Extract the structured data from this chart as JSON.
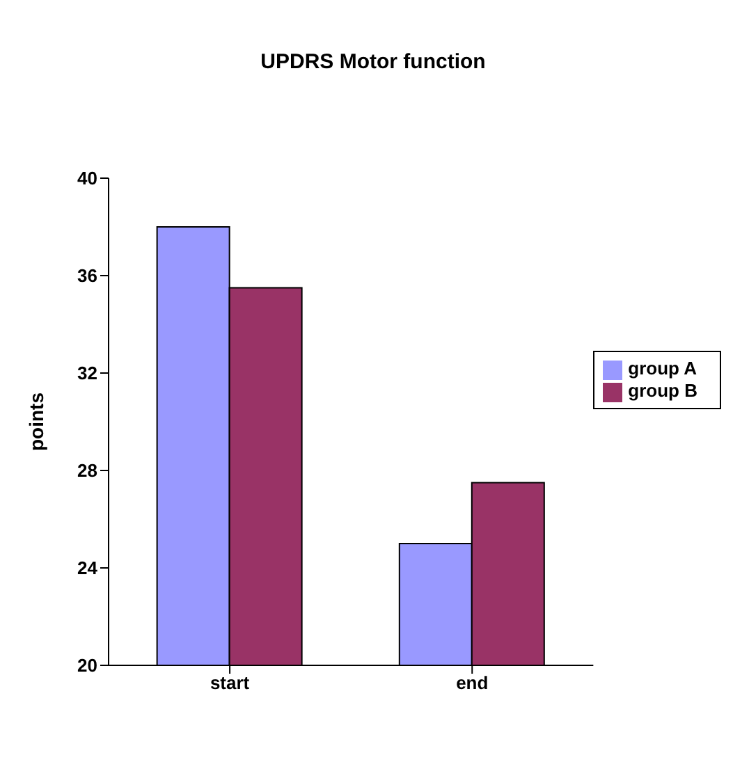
{
  "chart_data": {
    "type": "bar",
    "title": "UPDRS Motor function",
    "ylabel": "points",
    "categories": [
      "start",
      "end"
    ],
    "series": [
      {
        "name": "group A",
        "color": "#9999ff",
        "values": [
          38,
          25
        ]
      },
      {
        "name": "group B",
        "color": "#993366",
        "values": [
          35.5,
          27.5
        ]
      }
    ],
    "ylim": [
      20,
      40
    ],
    "yticks": [
      20,
      24,
      28,
      32,
      36,
      40
    ],
    "grid": false,
    "legend": "right"
  }
}
